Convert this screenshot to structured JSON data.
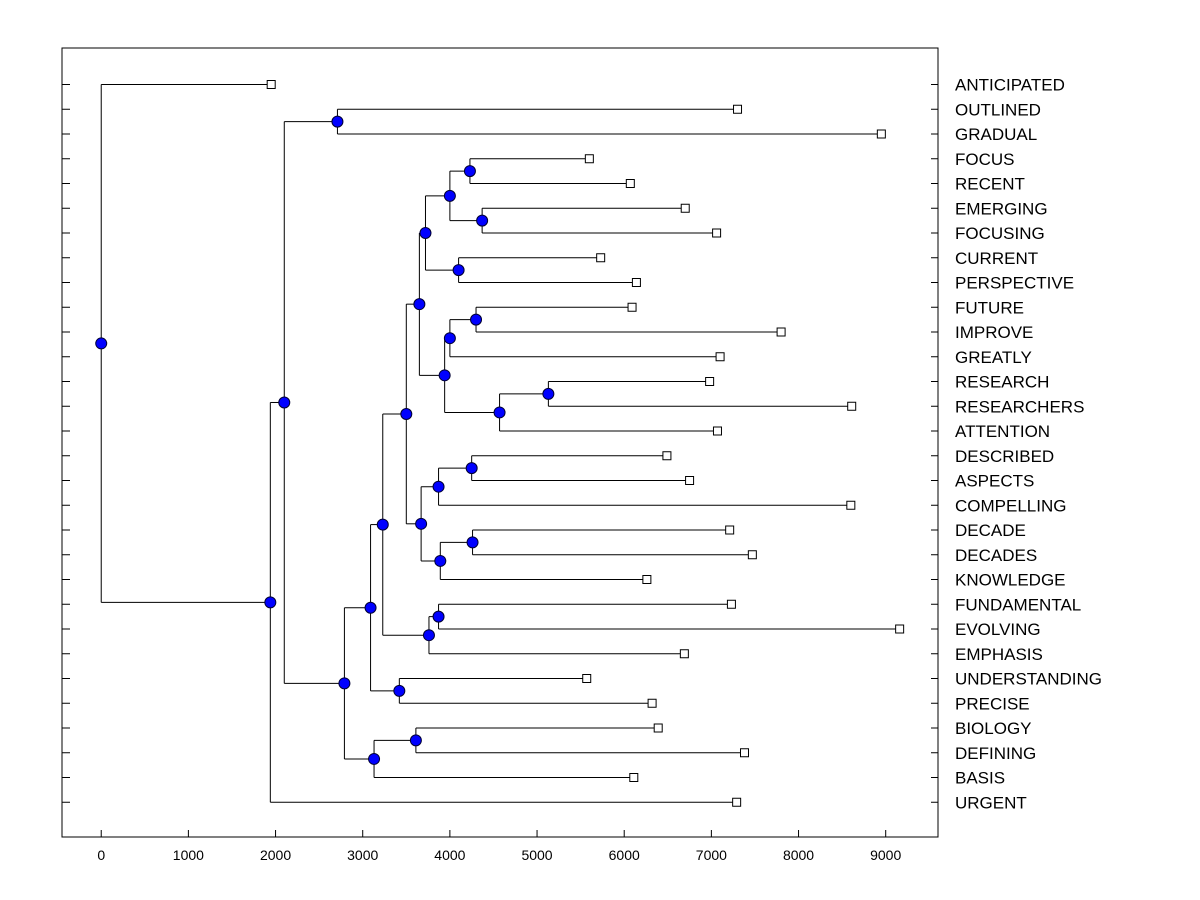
{
  "chart_data": {
    "type": "dendrogram",
    "orientation": "horizontal",
    "xlim": [
      -450,
      9600
    ],
    "x_ticks": [
      0,
      1000,
      2000,
      3000,
      4000,
      5000,
      6000,
      7000,
      8000,
      9000
    ],
    "x_tick_labels": [
      "0",
      "1000",
      "2000",
      "3000",
      "4000",
      "5000",
      "6000",
      "7000",
      "8000",
      "9000"
    ],
    "grid": false,
    "legend": "none",
    "colors": {
      "node_fill": "#0000ff",
      "node_stroke": "#000033",
      "leaf_fill": "#ffffff",
      "line": "#000000"
    },
    "leaves": [
      {
        "label": "ANTICIPATED",
        "value": 1950
      },
      {
        "label": "OUTLINED",
        "value": 7300
      },
      {
        "label": "GRADUAL",
        "value": 8950
      },
      {
        "label": "FOCUS",
        "value": 5600
      },
      {
        "label": "RECENT",
        "value": 6070
      },
      {
        "label": "EMERGING",
        "value": 6700
      },
      {
        "label": "FOCUSING",
        "value": 7060
      },
      {
        "label": "CURRENT",
        "value": 5730
      },
      {
        "label": "PERSPECTIVE",
        "value": 6140
      },
      {
        "label": "FUTURE",
        "value": 6090
      },
      {
        "label": "IMPROVE",
        "value": 7800
      },
      {
        "label": "GREATLY",
        "value": 7100
      },
      {
        "label": "RESEARCH",
        "value": 6980
      },
      {
        "label": "RESEARCHERS",
        "value": 8610
      },
      {
        "label": "ATTENTION",
        "value": 7070
      },
      {
        "label": "DESCRIBED",
        "value": 6490
      },
      {
        "label": "ASPECTS",
        "value": 6750
      },
      {
        "label": "COMPELLING",
        "value": 8600
      },
      {
        "label": "DECADE",
        "value": 7210
      },
      {
        "label": "DECADES",
        "value": 7470
      },
      {
        "label": "KNOWLEDGE",
        "value": 6260
      },
      {
        "label": "FUNDAMENTAL",
        "value": 7230
      },
      {
        "label": "EVOLVING",
        "value": 9160
      },
      {
        "label": "EMPHASIS",
        "value": 6690
      },
      {
        "label": "UNDERSTANDING",
        "value": 5570
      },
      {
        "label": "PRECISE",
        "value": 6320
      },
      {
        "label": "BIOLOGY",
        "value": 6390
      },
      {
        "label": "DEFINING",
        "value": 7380
      },
      {
        "label": "BASIS",
        "value": 6110
      },
      {
        "label": "URGENT",
        "value": 7290
      }
    ],
    "merges": [
      {
        "id": "n1",
        "a": "OUTLINED",
        "b": "GRADUAL",
        "value": 2710
      },
      {
        "id": "n2",
        "a": "FOCUS",
        "b": "RECENT",
        "value": 4230
      },
      {
        "id": "n3",
        "a": "EMERGING",
        "b": "FOCUSING",
        "value": 4370
      },
      {
        "id": "n4",
        "a": "n2",
        "b": "n3",
        "value": 4000
      },
      {
        "id": "n5",
        "a": "CURRENT",
        "b": "PERSPECTIVE",
        "value": 4100
      },
      {
        "id": "n6",
        "a": "n4",
        "b": "n5",
        "value": 3720
      },
      {
        "id": "n7",
        "a": "FUTURE",
        "b": "IMPROVE",
        "value": 4300
      },
      {
        "id": "n8",
        "a": "n7",
        "b": "GREATLY",
        "value": 4000
      },
      {
        "id": "n9",
        "a": "RESEARCH",
        "b": "RESEARCHERS",
        "value": 5130
      },
      {
        "id": "n10",
        "a": "n9",
        "b": "ATTENTION",
        "value": 4570
      },
      {
        "id": "n11",
        "a": "n8",
        "b": "n10",
        "value": 3940
      },
      {
        "id": "n12",
        "a": "n6",
        "b": "n11",
        "value": 3650
      },
      {
        "id": "n13",
        "a": "DESCRIBED",
        "b": "ASPECTS",
        "value": 4250
      },
      {
        "id": "n14",
        "a": "n13",
        "b": "COMPELLING",
        "value": 3870
      },
      {
        "id": "n15",
        "a": "DECADE",
        "b": "DECADES",
        "value": 4260
      },
      {
        "id": "n16",
        "a": "n15",
        "b": "KNOWLEDGE",
        "value": 3890
      },
      {
        "id": "n17",
        "a": "n14",
        "b": "n16",
        "value": 3670
      },
      {
        "id": "n18",
        "a": "n12",
        "b": "n17",
        "value": 3500
      },
      {
        "id": "n19",
        "a": "FUNDAMENTAL",
        "b": "EVOLVING",
        "value": 3870
      },
      {
        "id": "n20",
        "a": "n19",
        "b": "EMPHASIS",
        "value": 3760
      },
      {
        "id": "n21",
        "a": "n18",
        "b": "n20",
        "value": 3230
      },
      {
        "id": "n22",
        "a": "UNDERSTANDING",
        "b": "PRECISE",
        "value": 3420
      },
      {
        "id": "n23",
        "a": "n21",
        "b": "n22",
        "value": 3090
      },
      {
        "id": "n24",
        "a": "BIOLOGY",
        "b": "DEFINING",
        "value": 3610
      },
      {
        "id": "n25",
        "a": "n24",
        "b": "BASIS",
        "value": 3130
      },
      {
        "id": "n26",
        "a": "n23",
        "b": "n25",
        "value": 2790
      },
      {
        "id": "n27",
        "a": "n1",
        "b": "n26",
        "value": 2100
      },
      {
        "id": "n28",
        "a": "n27",
        "b": "URGENT",
        "value": 1940
      },
      {
        "id": "n29",
        "a": "ANTICIPATED",
        "b": "n28",
        "value": 0
      }
    ]
  }
}
